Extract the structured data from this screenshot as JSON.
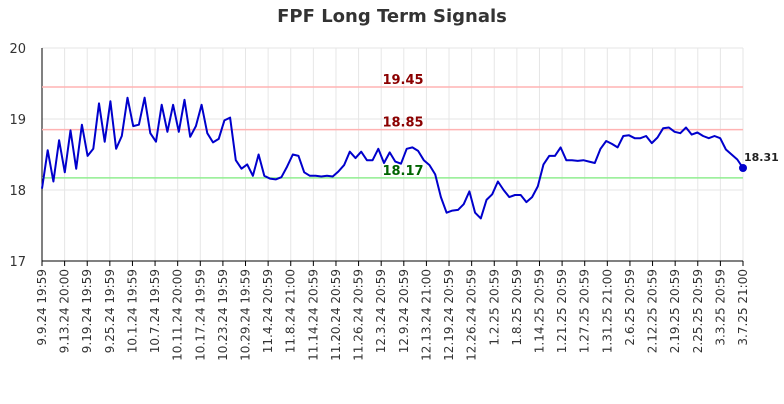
{
  "chart_data": {
    "type": "line",
    "title": "FPF Long Term Signals",
    "xlabel": "",
    "ylabel": "",
    "ylim": [
      17,
      20
    ],
    "yticks": [
      "17",
      "18",
      "19",
      "20"
    ],
    "grid": "horizontal",
    "colors": {
      "line": "#0000cc",
      "last_point": "#0000cc",
      "resistance_high": "#ffb3b3",
      "resistance_mid": "#ffb3b3",
      "support": "#90ee90",
      "label_resistance": "#8b0000",
      "label_support": "#006400",
      "grid": "#e6e6e6",
      "axis": "#000000"
    },
    "levels": [
      {
        "value": 19.45,
        "label": "19.45",
        "kind": "resistance"
      },
      {
        "value": 18.85,
        "label": "18.85",
        "kind": "resistance"
      },
      {
        "value": 18.17,
        "label": "18.17",
        "kind": "support"
      }
    ],
    "last_label": "18.31",
    "x_tick_labels": [
      "9.9.24 19:59",
      "9.13.24 20:00",
      "9.19.24 19:59",
      "9.25.24 19:59",
      "10.1.24 19:59",
      "10.7.24 19:59",
      "10.11.24 20:00",
      "10.17.24 19:59",
      "10.23.24 19:59",
      "10.29.24 19:59",
      "11.4.24 20:59",
      "11.8.24 21:00",
      "11.14.24 20:59",
      "11.20.24 20:59",
      "11.26.24 20:59",
      "12.3.24 20:59",
      "12.9.24 20:59",
      "12.13.24 21:00",
      "12.19.24 20:59",
      "12.26.24 20:59",
      "1.2.25 20:59",
      "1.8.25 20:59",
      "1.14.25 20:59",
      "1.21.25 20:59",
      "1.27.25 20:59",
      "1.31.25 21:00",
      "2.6.25 20:59",
      "2.12.25 20:59",
      "2.19.25 20:59",
      "2.25.25 20:59",
      "3.3.25 20:59",
      "3.7.25 21:00"
    ],
    "series": [
      {
        "values": [
          18.02,
          18.56,
          18.12,
          18.7,
          18.25,
          18.84,
          18.3,
          18.92,
          18.48,
          18.58,
          19.22,
          18.68,
          19.25,
          18.58,
          18.76,
          19.3,
          18.9,
          18.92,
          19.3,
          18.8,
          18.68,
          19.2,
          18.82,
          19.2,
          18.82,
          19.27,
          18.75,
          18.9,
          19.2,
          18.8,
          18.67,
          18.72,
          18.98,
          19.02,
          18.42,
          18.3,
          18.36,
          18.2,
          18.5,
          18.2,
          18.16,
          18.15,
          18.18,
          18.33,
          18.5,
          18.48,
          18.25,
          18.2,
          18.2,
          18.19,
          18.2,
          18.19,
          18.26,
          18.35,
          18.54,
          18.45,
          18.54,
          18.42,
          18.42,
          18.58,
          18.38,
          18.53,
          18.4,
          18.37,
          18.58,
          18.6,
          18.55,
          18.42,
          18.35,
          18.22,
          17.9,
          17.68,
          17.71,
          17.72,
          17.8,
          17.98,
          17.68,
          17.6,
          17.86,
          17.94,
          18.12,
          18.0,
          17.9,
          17.93,
          17.93,
          17.83,
          17.9,
          18.05,
          18.36,
          18.48,
          18.48,
          18.6,
          18.42,
          18.42,
          18.41,
          18.42,
          18.4,
          18.38,
          18.58,
          18.69,
          18.65,
          18.6,
          18.76,
          18.77,
          18.73,
          18.73,
          18.76,
          18.66,
          18.74,
          18.87,
          18.88,
          18.82,
          18.8,
          18.88,
          18.78,
          18.81,
          18.76,
          18.73,
          18.76,
          18.73,
          18.57,
          18.5,
          18.43,
          18.31
        ]
      }
    ]
  }
}
